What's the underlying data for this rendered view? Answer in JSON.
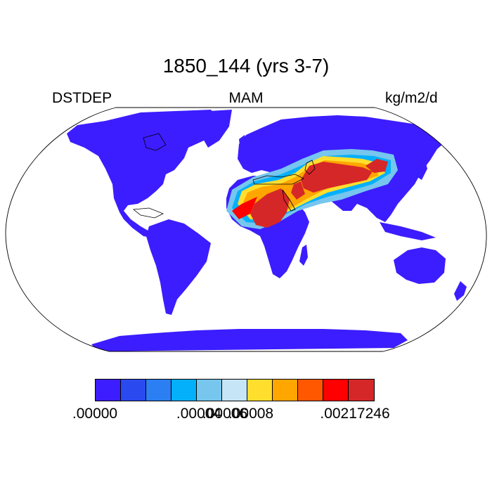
{
  "title": "1850_144 (yrs 3-7)",
  "left_label": "DSTDEP",
  "center_label": "MAM",
  "right_label": "kg/m2/d",
  "colors": {
    "base": "#3c1dff",
    "water_bg": "#ffffff",
    "coast": "#000000"
  },
  "colorbar": {
    "colors": [
      "#3c1dff",
      "#2a4aef",
      "#2b7ff2",
      "#05b0fb",
      "#76c6ee",
      "#c6e6f8",
      "#ffde2d",
      "#ffa600",
      "#ff5800",
      "#ff0000",
      "#d62728"
    ],
    "labels": [
      {
        "text": ".00000",
        "after_box": 0
      },
      {
        "text": ".00004",
        "after_box": 4
      },
      {
        "text": ".00006",
        "after_box": 5
      },
      {
        "text": ".00008",
        "after_box": 6
      },
      {
        "text": ".00217246",
        "after_box": 10
      }
    ]
  }
}
